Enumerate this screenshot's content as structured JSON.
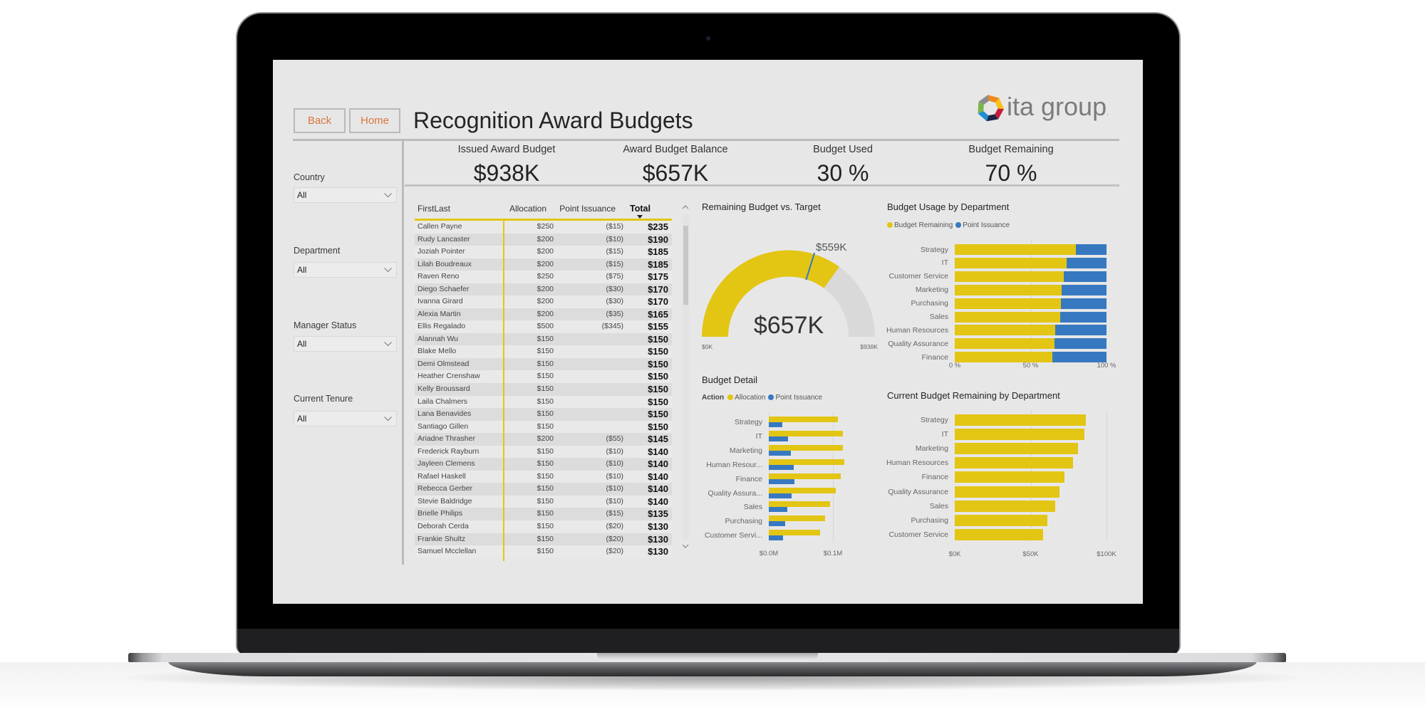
{
  "app": {
    "title": "Recognition Award Budgets",
    "logo_text": "ita group",
    "logo_dot": "."
  },
  "nav": {
    "back_label": "Back",
    "home_label": "Home"
  },
  "colors": {
    "yellow": "#e3c514",
    "blue": "#3679c1",
    "gauge_track": "#d9d9d9",
    "nav_text": "#d9773a",
    "screen_bg": "#e8e7e8"
  },
  "icons": {
    "logo": "ita-group-logo-icon",
    "dropdown": "chevron-down-icon",
    "sort": "sort-descending-icon",
    "scroll_up": "chevron-up-icon",
    "scroll_down": "chevron-down-icon"
  },
  "kpis": [
    {
      "label": "Issued Award Budget",
      "value": "$938K"
    },
    {
      "label": "Award Budget Balance",
      "value": "$657K"
    },
    {
      "label": "Budget Used",
      "value": "30 %"
    },
    {
      "label": "Budget Remaining",
      "value": "70 %"
    }
  ],
  "filters": [
    {
      "label": "Country",
      "value": "All"
    },
    {
      "label": "Department",
      "value": "All"
    },
    {
      "label": "Manager Status",
      "value": "All"
    },
    {
      "label": "Current Tenure",
      "value": "All"
    }
  ],
  "table": {
    "columns": [
      "FirstLast",
      "Allocation",
      "Point Issuance",
      "Total"
    ],
    "sort_column": "Total",
    "sort_direction": "descending",
    "rows": [
      [
        "Callen Payne",
        "$250",
        "($15)",
        "$235"
      ],
      [
        "Rudy Lancaster",
        "$200",
        "($10)",
        "$190"
      ],
      [
        "Joziah Pointer",
        "$200",
        "($15)",
        "$185"
      ],
      [
        "Lilah Boudreaux",
        "$200",
        "($15)",
        "$185"
      ],
      [
        "Raven Reno",
        "$250",
        "($75)",
        "$175"
      ],
      [
        "Diego Schaefer",
        "$200",
        "($30)",
        "$170"
      ],
      [
        "Ivanna Girard",
        "$200",
        "($30)",
        "$170"
      ],
      [
        "Alexia Martin",
        "$200",
        "($35)",
        "$165"
      ],
      [
        "Ellis Regalado",
        "$500",
        "($345)",
        "$155"
      ],
      [
        "Alannah Wu",
        "$150",
        "",
        "$150"
      ],
      [
        "Blake Mello",
        "$150",
        "",
        "$150"
      ],
      [
        "Demi Olmstead",
        "$150",
        "",
        "$150"
      ],
      [
        "Heather Crenshaw",
        "$150",
        "",
        "$150"
      ],
      [
        "Kelly Broussard",
        "$150",
        "",
        "$150"
      ],
      [
        "Laila Chalmers",
        "$150",
        "",
        "$150"
      ],
      [
        "Lana Benavides",
        "$150",
        "",
        "$150"
      ],
      [
        "Santiago Gillen",
        "$150",
        "",
        "$150"
      ],
      [
        "Ariadne Thrasher",
        "$200",
        "($55)",
        "$145"
      ],
      [
        "Frederick Rayburn",
        "$150",
        "($10)",
        "$140"
      ],
      [
        "Jayleen Clemens",
        "$150",
        "($10)",
        "$140"
      ],
      [
        "Rafael Haskell",
        "$150",
        "($10)",
        "$140"
      ],
      [
        "Rebecca Gerber",
        "$150",
        "($10)",
        "$140"
      ],
      [
        "Stevie Baldridge",
        "$150",
        "($10)",
        "$140"
      ],
      [
        "Brielle Philips",
        "$150",
        "($15)",
        "$135"
      ],
      [
        "Deborah Cerda",
        "$150",
        "($20)",
        "$130"
      ],
      [
        "Frankie Shultz",
        "$150",
        "($20)",
        "$130"
      ],
      [
        "Samuel Mcclellan",
        "$150",
        "($20)",
        "$130"
      ]
    ]
  },
  "chart_data": [
    {
      "type": "gauge",
      "title": "Remaining Budget vs. Target",
      "min": 0,
      "max": 938,
      "value": 657,
      "target": 559,
      "unit": "$K",
      "min_label": "$0K",
      "max_label": "$938K",
      "value_label": "$657K",
      "target_label": "$559K"
    },
    {
      "type": "bar",
      "orientation": "horizontal",
      "stacking": "100%",
      "title": "Budget Usage by Department",
      "categories": [
        "Strategy",
        "IT",
        "Customer Service",
        "Marketing",
        "Purchasing",
        "Sales",
        "Human Resources",
        "Quality Assurance",
        "Finance"
      ],
      "series": [
        {
          "name": "Budget Remaining",
          "values": [
            80,
            73.5,
            72,
            70.3,
            69.8,
            69.3,
            66.3,
            65.7,
            64.1
          ]
        },
        {
          "name": "Point Issuance",
          "values": [
            20,
            26.5,
            28,
            29.7,
            30.2,
            30.7,
            33.7,
            34.3,
            35.9
          ]
        }
      ],
      "xlabel": "",
      "ylabel": "",
      "xlim": [
        0,
        100
      ],
      "xtick_values": [
        0,
        50,
        100
      ],
      "xticks": [
        "0 %",
        "50 %",
        "100 %"
      ],
      "legend_position": "top-left",
      "grid": true
    },
    {
      "type": "bar",
      "orientation": "horizontal",
      "stacking": "grouped",
      "title": "Budget Detail",
      "legend_title": "Action",
      "categories": [
        "Strategy",
        "IT",
        "Marketing",
        "Human Resour...",
        "Finance",
        "Quality Assura...",
        "Sales",
        "Purchasing",
        "Customer Servi..."
      ],
      "series": [
        {
          "name": "Allocation",
          "values": [
            108,
            116,
            116,
            118,
            112,
            104,
            95,
            88,
            80
          ]
        },
        {
          "name": "Point Issuance",
          "values": [
            21,
            30,
            34,
            39,
            40,
            36,
            29,
            26,
            22
          ]
        }
      ],
      "unit": "$K",
      "xlim": [
        0,
        100
      ],
      "xtick_values": [
        0,
        100
      ],
      "xticks": [
        "$0.0M",
        "$0.1M"
      ],
      "legend_position": "top-left",
      "grid": true
    },
    {
      "type": "bar",
      "orientation": "horizontal",
      "title": "Current Budget Remaining by Department",
      "categories": [
        "Strategy",
        "IT",
        "Marketing",
        "Human Resources",
        "Finance",
        "Quality Assurance",
        "Sales",
        "Purchasing",
        "Customer Service"
      ],
      "series": [
        {
          "name": "Budget Remaining",
          "values": [
            86.5,
            85.5,
            81,
            78,
            72.5,
            69,
            66,
            61,
            58
          ]
        }
      ],
      "unit": "$K",
      "xlim": [
        0,
        100
      ],
      "xtick_values": [
        0,
        50,
        100
      ],
      "xticks": [
        "$0K",
        "$50K",
        "$100K"
      ],
      "grid": true
    }
  ]
}
